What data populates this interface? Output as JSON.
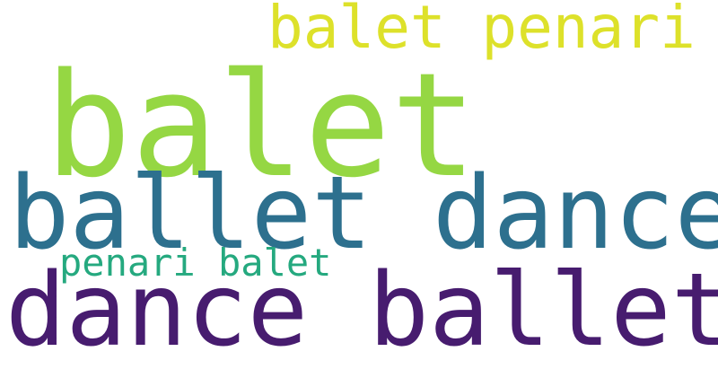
{
  "words": [
    {
      "text": "balet penari",
      "color": "#dde12a"
    },
    {
      "text": "balet",
      "color": "#95d743"
    },
    {
      "text": "ballet dance",
      "color": "#2d708e"
    },
    {
      "text": "penari balet",
      "color": "#25a97f"
    },
    {
      "text": "dance ballet",
      "color": "#471c6f"
    }
  ]
}
